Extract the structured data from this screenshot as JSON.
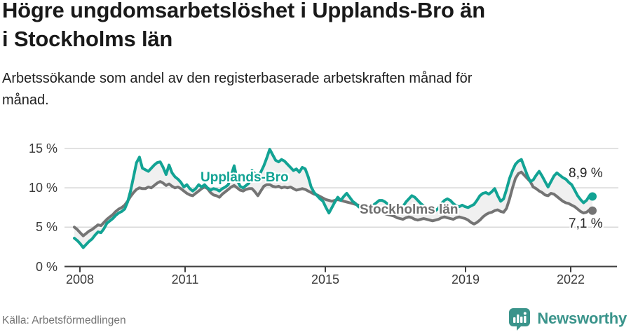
{
  "header": {
    "title_lines": [
      "Högre ungdomsarbetslöshet i Upplands-Bro än",
      "i Stockholms län"
    ],
    "subtitle_lines": [
      "Arbetssökande som andel av den registerbaserade arbetskraften månad för",
      "månad."
    ]
  },
  "footer": {
    "source": "Källa: Arbetsförmedlingen",
    "brand": "Newsworthy",
    "brand_icon": "bar-chart-speech-bubble-icon"
  },
  "colors": {
    "accent_teal": "#12a394",
    "series_gray": "#747474",
    "label_gray": "#6f6f6f",
    "grid": "#d8d8d8",
    "axis": "#3f3f3f",
    "fill_between": "#f0f0f0",
    "title": "#191919",
    "muted": "#747474",
    "brand_teal": "#3a948b"
  },
  "chart_data": {
    "type": "line",
    "title": "Högre ungdomsarbetslöshet i Upplands-Bro än i Stockholms län",
    "subtitle": "Arbetssökande som andel av den registerbaserade arbetskraften månad för månad.",
    "xlabel": "",
    "ylabel": "",
    "frequency": "monthly",
    "x_start": "2008-01",
    "x_end": "2022-08",
    "ylim": [
      0,
      15
    ],
    "grid": "horizontal",
    "legend_position": "inline-labels",
    "y_tick_values": [
      0,
      5,
      10,
      15
    ],
    "y_tick_labels": [
      "0 %",
      "5 %",
      "10 %",
      "15 %"
    ],
    "x_tick_labels": [
      "2008",
      "2011",
      "2015",
      "2019",
      "2022"
    ],
    "series": [
      {
        "name": "Upplands-Bro",
        "color": "#12a394",
        "end_label": "8,9 %",
        "end_value": 8.9,
        "values": [
          3.6,
          3.3,
          2.9,
          2.4,
          2.8,
          3.2,
          3.5,
          4.0,
          4.4,
          4.3,
          4.8,
          5.5,
          5.8,
          6.1,
          6.5,
          6.8,
          7.0,
          7.3,
          8.2,
          9.6,
          11.4,
          13.2,
          13.9,
          12.5,
          12.3,
          12.1,
          12.5,
          12.9,
          13.2,
          13.3,
          12.6,
          11.7,
          12.9,
          11.9,
          11.4,
          11.1,
          10.7,
          10.1,
          10.4,
          9.9,
          9.6,
          9.9,
          10.4,
          10.1,
          10.4,
          10.0,
          9.7,
          9.9,
          9.8,
          9.6,
          9.9,
          10.1,
          10.4,
          11.6,
          12.8,
          11.0,
          10.2,
          10.0,
          10.3,
          10.6,
          12.2,
          11.8,
          11.3,
          12.0,
          12.8,
          13.8,
          14.9,
          14.2,
          13.5,
          13.3,
          13.6,
          13.4,
          13.0,
          12.6,
          12.2,
          12.4,
          12.0,
          12.6,
          12.4,
          11.4,
          10.1,
          9.4,
          9.0,
          8.6,
          8.3,
          7.5,
          6.8,
          7.5,
          8.2,
          8.8,
          8.4,
          8.9,
          9.3,
          8.8,
          8.3,
          8.0,
          7.6,
          7.4,
          7.2,
          7.0,
          7.4,
          7.8,
          8.1,
          8.4,
          8.4,
          8.2,
          7.9,
          7.7,
          7.5,
          7.3,
          7.2,
          7.6,
          8.2,
          8.6,
          9.0,
          8.8,
          8.4,
          8.0,
          7.7,
          7.5,
          7.4,
          7.2,
          7.1,
          7.4,
          8.0,
          8.4,
          8.6,
          8.4,
          8.0,
          7.7,
          7.6,
          7.8,
          7.6,
          7.5,
          7.7,
          7.9,
          8.4,
          9.0,
          9.3,
          9.4,
          9.2,
          9.5,
          9.9,
          9.0,
          8.3,
          8.6,
          9.8,
          11.2,
          12.2,
          13.0,
          13.4,
          13.6,
          12.6,
          11.6,
          10.8,
          11.0,
          11.6,
          12.1,
          11.5,
          10.8,
          10.1,
          10.8,
          11.5,
          11.9,
          11.6,
          11.3,
          11.1,
          10.7,
          10.4,
          9.7,
          9.0,
          8.5,
          8.1,
          8.4,
          9.0,
          8.9
        ]
      },
      {
        "name": "Stockholms län",
        "color": "#747474",
        "end_label": "7,1 %",
        "end_value": 7.1,
        "values": [
          5.0,
          4.7,
          4.3,
          3.9,
          4.2,
          4.5,
          4.7,
          5.0,
          5.3,
          5.2,
          5.6,
          6.0,
          6.3,
          6.6,
          7.0,
          7.3,
          7.5,
          7.8,
          8.3,
          8.9,
          9.4,
          9.8,
          10.0,
          9.9,
          9.9,
          10.1,
          10.0,
          10.3,
          10.6,
          10.8,
          10.6,
          10.3,
          10.5,
          10.2,
          10.0,
          10.1,
          9.9,
          9.6,
          9.3,
          9.1,
          9.0,
          9.3,
          9.6,
          9.9,
          10.1,
          9.9,
          9.4,
          9.1,
          9.0,
          8.8,
          9.2,
          9.5,
          9.8,
          10.1,
          10.3,
          10.0,
          9.7,
          9.6,
          9.8,
          9.9,
          9.9,
          9.5,
          9.0,
          9.6,
          10.2,
          10.4,
          10.4,
          10.2,
          10.1,
          10.2,
          10.0,
          10.1,
          10.0,
          10.1,
          9.9,
          9.7,
          9.8,
          9.9,
          9.8,
          9.6,
          9.4,
          9.2,
          9.1,
          8.9,
          8.7,
          8.5,
          8.4,
          8.3,
          8.4,
          8.5,
          8.4,
          8.3,
          8.2,
          8.1,
          8.0,
          7.9,
          7.8,
          7.6,
          7.5,
          7.3,
          7.2,
          7.1,
          7.0,
          6.9,
          6.8,
          6.7,
          6.6,
          6.5,
          6.4,
          6.2,
          6.1,
          6.0,
          6.2,
          6.3,
          6.2,
          6.0,
          5.9,
          6.0,
          6.1,
          6.0,
          5.9,
          5.8,
          5.9,
          6.0,
          6.2,
          6.3,
          6.2,
          6.1,
          6.0,
          6.2,
          6.3,
          6.2,
          6.1,
          5.9,
          5.6,
          5.4,
          5.6,
          5.9,
          6.3,
          6.6,
          6.8,
          6.9,
          7.1,
          7.2,
          7.0,
          6.9,
          7.4,
          8.6,
          10.0,
          11.2,
          11.8,
          12.0,
          11.6,
          11.2,
          10.8,
          10.1,
          9.9,
          9.6,
          9.4,
          9.1,
          9.0,
          9.3,
          9.2,
          8.9,
          8.6,
          8.3,
          8.1,
          8.0,
          7.8,
          7.6,
          7.3,
          7.0,
          6.8,
          6.9,
          7.2,
          7.1
        ]
      }
    ]
  }
}
